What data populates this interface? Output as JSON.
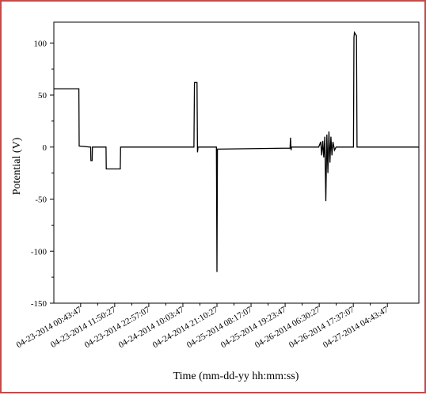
{
  "chart_data": {
    "type": "line",
    "xlabel": "Time (mm-dd-yy hh:mm:ss)",
    "ylabel": "Potential (V)",
    "ylim": [
      -150,
      120
    ],
    "xlim": [
      "04-22-2014 16:00:00",
      "04-27-2014 15:00:00"
    ],
    "yticks": [
      -150,
      -100,
      -50,
      0,
      50,
      100
    ],
    "xticks": [
      "04-23-2014 00:43:47",
      "04-23-2014 11:50:27",
      "04-23-2014 22:57:07",
      "04-24-2014 10:03:47",
      "04-24-2014 21:10:27",
      "04-25-2014 08:17:07",
      "04-25-2014 19:23:47",
      "04-26-2014 06:30:27",
      "04-26-2014 17:37:07",
      "04-27-2014 04:43:47"
    ],
    "grid": false,
    "series": [
      {
        "color": "#000000",
        "points": [
          [
            "04-22-2014 16:00:00",
            56
          ],
          [
            "04-23-2014 00:10:00",
            56
          ],
          [
            "04-23-2014 00:15:00",
            1
          ],
          [
            "04-23-2014 04:00:00",
            0
          ],
          [
            "04-23-2014 04:05:00",
            -13
          ],
          [
            "04-23-2014 04:30:00",
            -13
          ],
          [
            "04-23-2014 04:35:00",
            0
          ],
          [
            "04-23-2014 09:00:00",
            0
          ],
          [
            "04-23-2014 09:05:00",
            -21
          ],
          [
            "04-23-2014 13:40:00",
            -21
          ],
          [
            "04-23-2014 13:45:00",
            0
          ],
          [
            "04-24-2014 13:40:00",
            0
          ],
          [
            "04-24-2014 13:50:00",
            62
          ],
          [
            "04-24-2014 14:40:00",
            62
          ],
          [
            "04-24-2014 14:50:00",
            -5
          ],
          [
            "04-24-2014 15:00:00",
            0
          ],
          [
            "04-24-2014 21:00:00",
            0
          ],
          [
            "04-24-2014 21:10:00",
            -120
          ],
          [
            "04-24-2014 21:20:00",
            -2
          ],
          [
            "04-25-2014 21:00:00",
            -1
          ],
          [
            "04-25-2014 21:10:00",
            9
          ],
          [
            "04-25-2014 21:20:00",
            -3
          ],
          [
            "04-25-2014 21:30:00",
            0
          ],
          [
            "04-26-2014 06:20:00",
            0
          ],
          [
            "04-26-2014 07:00:00",
            5
          ],
          [
            "04-26-2014 07:20:00",
            -8
          ],
          [
            "04-26-2014 07:40:00",
            6
          ],
          [
            "04-26-2014 08:00:00",
            -10
          ],
          [
            "04-26-2014 08:20:00",
            10
          ],
          [
            "04-26-2014 08:40:00",
            -52
          ],
          [
            "04-26-2014 09:00:00",
            12
          ],
          [
            "04-26-2014 09:20:00",
            -25
          ],
          [
            "04-26-2014 09:40:00",
            15
          ],
          [
            "04-26-2014 10:00:00",
            -15
          ],
          [
            "04-26-2014 10:20:00",
            10
          ],
          [
            "04-26-2014 10:40:00",
            -8
          ],
          [
            "04-26-2014 11:00:00",
            5
          ],
          [
            "04-26-2014 11:30:00",
            -3
          ],
          [
            "04-26-2014 12:00:00",
            0
          ],
          [
            "04-26-2014 17:40:00",
            0
          ],
          [
            "04-26-2014 17:50:00",
            105
          ],
          [
            "04-26-2014 18:00:00",
            110
          ],
          [
            "04-26-2014 18:40:00",
            107
          ],
          [
            "04-26-2014 18:50:00",
            0
          ],
          [
            "04-27-2014 15:00:00",
            0
          ]
        ]
      }
    ]
  }
}
